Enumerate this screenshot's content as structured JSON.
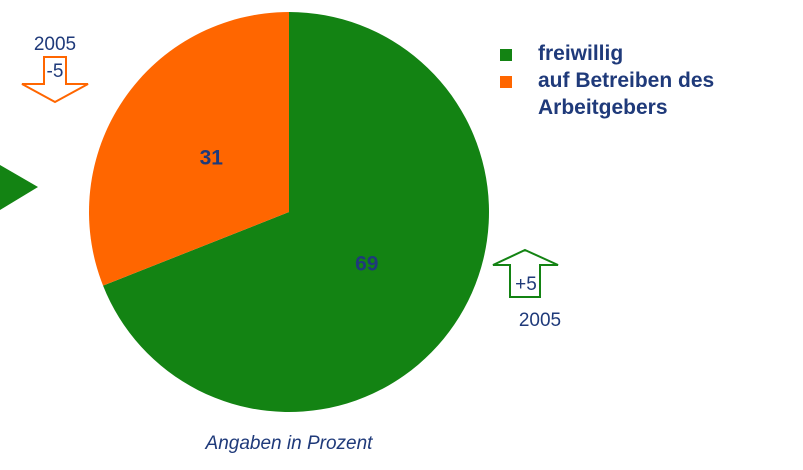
{
  "chart_data": {
    "type": "pie",
    "categories": [
      "freiwillig",
      "auf Betreiben des Arbeitgebers"
    ],
    "values": [
      69,
      31
    ],
    "colors": [
      "#138313",
      "#ff6600"
    ],
    "note": "Angaben in Prozent",
    "annotations": [
      {
        "year": "2005",
        "change": "-5"
      },
      {
        "year": "2005",
        "change": "+5"
      }
    ]
  }
}
